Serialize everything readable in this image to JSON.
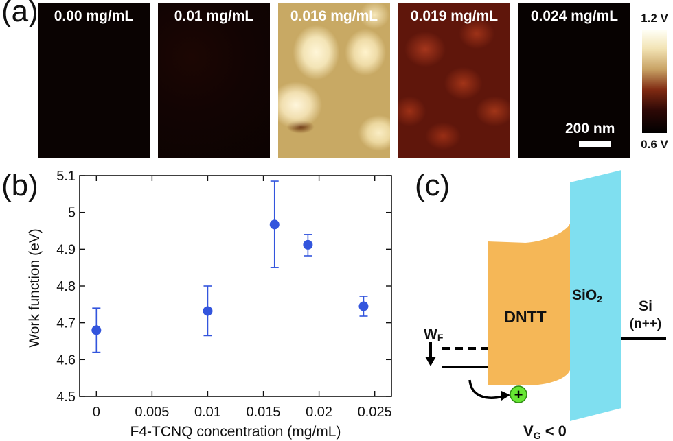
{
  "panel_labels": {
    "a": "(a)",
    "b": "(b)",
    "c": "(c)"
  },
  "afm_panels": [
    {
      "label": "0.00 mg/mL"
    },
    {
      "label": "0.01 mg/mL"
    },
    {
      "label": "0.016 mg/mL"
    },
    {
      "label": "0.019 mg/mL"
    },
    {
      "label": "0.024 mg/mL"
    }
  ],
  "colorbar": {
    "max_label": "1.2 V",
    "min_label": "0.6 V"
  },
  "scalebar": {
    "label": "200 nm"
  },
  "chart_data": {
    "type": "scatter",
    "xlabel": "F4-TCNQ concentration (mg/mL)",
    "ylabel": "Work function (eV)",
    "xlim": [
      -0.0015,
      0.0265
    ],
    "ylim": [
      4.5,
      5.1
    ],
    "xticks": [
      "0",
      "0.005",
      "0.01",
      "0.015",
      "0.02",
      "0.025"
    ],
    "xtick_values": [
      0,
      0.005,
      0.01,
      0.015,
      0.02,
      0.025
    ],
    "yticks": [
      "4.5",
      "4.6",
      "4.7",
      "4.8",
      "4.9",
      "5",
      "5.1"
    ],
    "ytick_values": [
      4.5,
      4.6,
      4.7,
      4.8,
      4.9,
      5.0,
      5.1
    ],
    "x": [
      0,
      0.01,
      0.016,
      0.019,
      0.024
    ],
    "y": [
      4.68,
      4.732,
      4.967,
      4.912,
      4.745
    ],
    "yerr_low": [
      4.62,
      4.665,
      4.85,
      4.882,
      4.718
    ],
    "yerr_high": [
      4.74,
      4.8,
      5.085,
      4.94,
      4.772
    ],
    "marker_color": "#3355dd",
    "grid": false
  },
  "band_diagram": {
    "dntt_label": "DNTT",
    "sio2_label": "SiO",
    "sio2_sub": "2",
    "si_label": "Si",
    "si_sub": "(n++)",
    "wf_label": "W",
    "wf_sub": "F",
    "vg_label": "V",
    "vg_sub": "G",
    "vg_rest": " < 0",
    "hole_symbol": "+",
    "dntt_color": "#f5b757",
    "sio2_color": "#7fdff0",
    "hole_color": "#66e633"
  }
}
